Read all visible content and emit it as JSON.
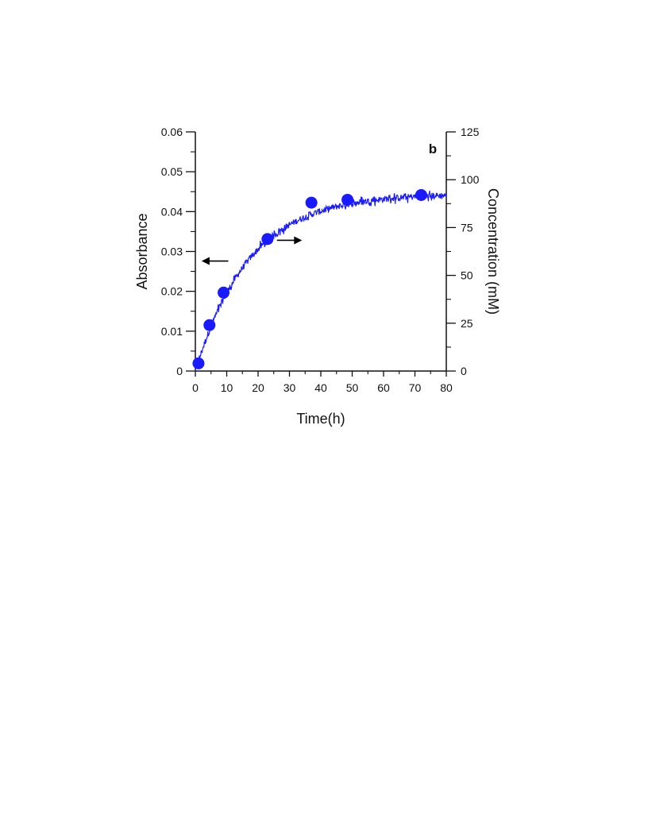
{
  "chart_data": {
    "type": "line",
    "panel_label": "b",
    "xlabel": "Time(h)",
    "ylabel_left": "Absorbance",
    "ylabel_right": "Concentration (mM)",
    "xlim": [
      0,
      80
    ],
    "ylim_left": [
      0,
      0.06
    ],
    "ylim_right": [
      0,
      125
    ],
    "x_ticks": [
      0,
      10,
      20,
      30,
      40,
      50,
      60,
      70,
      80
    ],
    "x_tick_labels": [
      "0",
      "10",
      "20",
      "30",
      "40",
      "50",
      "60",
      "70",
      "80"
    ],
    "y_left_ticks": [
      0,
      0.01,
      0.02,
      0.03,
      0.04,
      0.05,
      0.06
    ],
    "y_left_tick_labels": [
      "0",
      "0.01",
      "0.02",
      "0.03",
      "0.04",
      "0.05",
      "0.06"
    ],
    "y_right_ticks": [
      0,
      25,
      50,
      75,
      100,
      125
    ],
    "y_right_tick_labels": [
      "0",
      "25",
      "50",
      "75",
      "100",
      "125"
    ],
    "grid": false,
    "colors": {
      "series": "#1a1aff",
      "axes": "#111111"
    },
    "series": [
      {
        "kind": "line",
        "axis": "left",
        "curve": {
          "asymptote": 0.0445,
          "rate_per_h": 0.058,
          "noise": 0.0008
        },
        "x_range": [
          0,
          80
        ]
      },
      {
        "kind": "scatter",
        "axis": "right",
        "x": [
          1,
          4.5,
          9,
          23,
          37,
          48.5,
          72
        ],
        "y": [
          4,
          24,
          41,
          69,
          88,
          89.5,
          92
        ]
      }
    ],
    "annotations": [
      {
        "type": "arrow",
        "direction": "left",
        "points_to": "left-axis",
        "x_from": 10.5,
        "x_to": 2.5,
        "y_left": 0.0276
      },
      {
        "type": "arrow",
        "direction": "right",
        "points_to": "right-axis",
        "x_from": 26,
        "x_to": 33.5,
        "y_left": 0.0328
      }
    ]
  }
}
